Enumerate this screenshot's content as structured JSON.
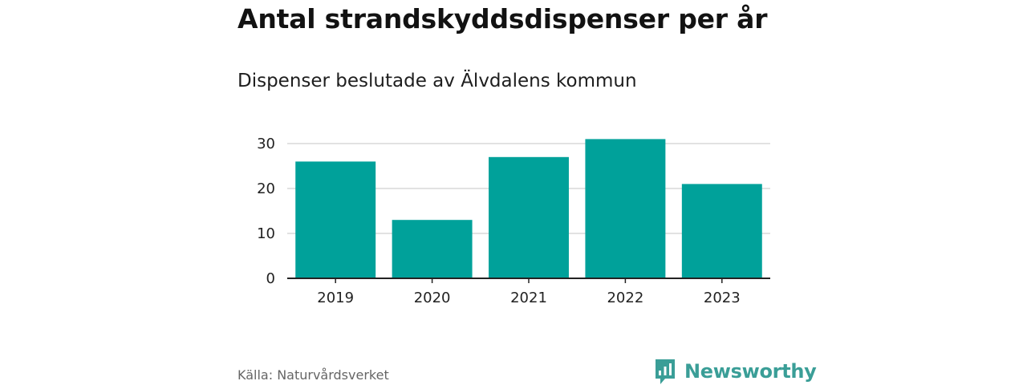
{
  "header": {
    "title": "Antal strandskyddsdispenser per år",
    "subtitle": "Dispenser beslutade av Älvdalens kommun"
  },
  "footer": {
    "source": "Källa: Naturvårdsverket",
    "brand": "Newsworthy"
  },
  "icons": {
    "brand_logo": "bar-chart-speech-bubble-icon"
  },
  "colors": {
    "bar": "#00a19a",
    "brand": "#3a9e97",
    "grid": "#d9d9d9",
    "axis": "#222222"
  },
  "chart_data": {
    "type": "bar",
    "title": "Antal strandskyddsdispenser per år",
    "subtitle": "Dispenser beslutade av Älvdalens kommun",
    "categories": [
      "2019",
      "2020",
      "2021",
      "2022",
      "2023"
    ],
    "values": [
      26,
      13,
      27,
      31,
      21
    ],
    "xlabel": "",
    "ylabel": "",
    "ylim": [
      0,
      30
    ],
    "yticks": [
      0,
      10,
      20,
      30
    ],
    "grid": true,
    "legend": "none"
  }
}
